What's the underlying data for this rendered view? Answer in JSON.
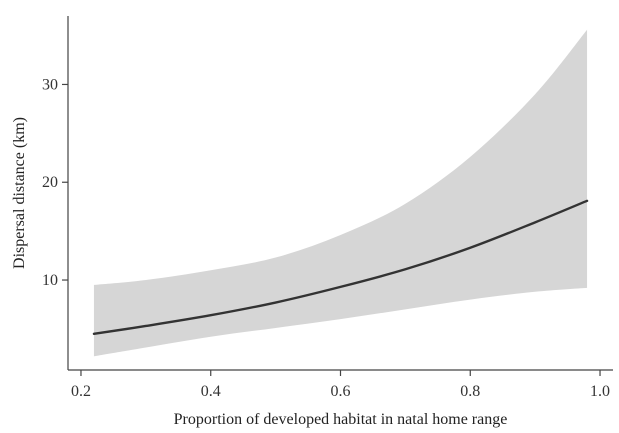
{
  "chart_data": {
    "type": "line",
    "title": "",
    "xlabel": "Proportion of developed habitat in natal home range",
    "ylabel": "Dispersal distance (km)",
    "xlim": [
      0.18,
      1.02
    ],
    "ylim": [
      0.8,
      37.0
    ],
    "x_ticks": [
      {
        "value": 0.2,
        "label": "0.2"
      },
      {
        "value": 0.4,
        "label": "0.4"
      },
      {
        "value": 0.6,
        "label": "0.6"
      },
      {
        "value": 0.8,
        "label": "0.8"
      },
      {
        "value": 1.0,
        "label": "1.0"
      }
    ],
    "y_ticks": [
      {
        "value": 10,
        "label": "10"
      },
      {
        "value": 20,
        "label": "20"
      },
      {
        "value": 30,
        "label": "30"
      }
    ],
    "grid": false,
    "legend": "none",
    "series": [
      {
        "kind": "confidence-band",
        "x": [
          0.22,
          0.3,
          0.4,
          0.5,
          0.6,
          0.7,
          0.8,
          0.9,
          0.98
        ],
        "lower": [
          2.2,
          3.1,
          4.2,
          5.1,
          6.0,
          7.0,
          8.0,
          8.8,
          9.2
        ],
        "upper": [
          9.5,
          10.0,
          11.0,
          12.3,
          14.6,
          17.8,
          22.6,
          29.0,
          35.6
        ]
      },
      {
        "kind": "fitted-line",
        "x": [
          0.22,
          0.3,
          0.4,
          0.5,
          0.6,
          0.7,
          0.8,
          0.9,
          0.98
        ],
        "y": [
          4.5,
          5.3,
          6.4,
          7.7,
          9.3,
          11.1,
          13.3,
          15.9,
          18.1
        ]
      }
    ],
    "colors": {
      "band": "#d6d6d6",
      "line": "#333333",
      "axis": "#444444"
    }
  }
}
